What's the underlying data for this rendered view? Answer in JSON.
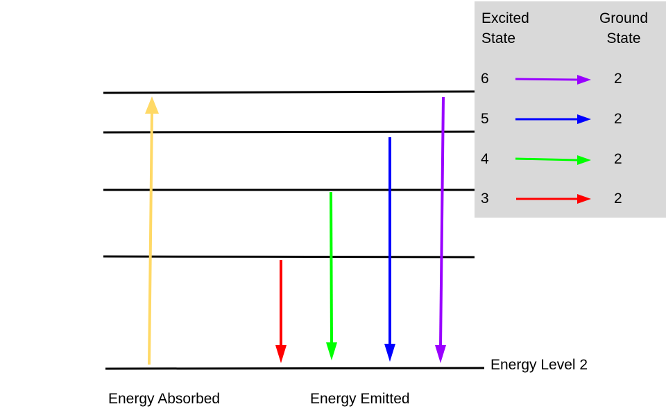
{
  "labels": {
    "energy_absorbed": "Energy Absorbed",
    "energy_emitted": "Energy Emitted",
    "ground_level": "Energy Level 2"
  },
  "legend": {
    "excited_header_line1": "Excited",
    "excited_header_line2": "State",
    "ground_header_line1": "Ground",
    "ground_header_line2": "State",
    "rows": [
      {
        "excited": "6",
        "ground": "2",
        "color": "#9900ff"
      },
      {
        "excited": "5",
        "ground": "2",
        "color": "#0000ff"
      },
      {
        "excited": "4",
        "ground": "2",
        "color": "#00ff00"
      },
      {
        "excited": "3",
        "ground": "2",
        "color": "#ff0000"
      }
    ]
  },
  "colors": {
    "absorbed": "#ffd966",
    "level_line": "#000000",
    "legend_bg": "#d9d9d9",
    "transition_3": "#ff0000",
    "transition_4": "#00ff00",
    "transition_5": "#0000ff",
    "transition_6": "#9900ff"
  }
}
